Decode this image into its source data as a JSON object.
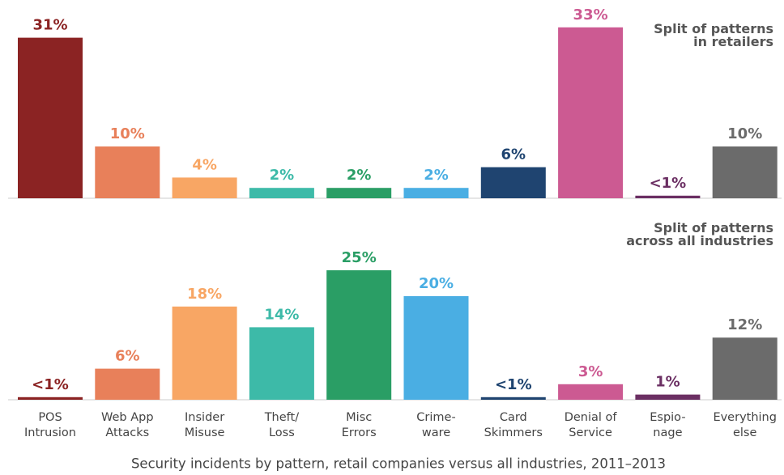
{
  "chart_data": [
    {
      "type": "bar",
      "title": "Split of patterns\nin retailers",
      "values": [
        31,
        10,
        4,
        2,
        2,
        2,
        6,
        33,
        0.5,
        10
      ],
      "value_labels": [
        "31%",
        "10%",
        "4%",
        "2%",
        "2%",
        "2%",
        "6%",
        "33%",
        "<1%",
        "10%"
      ],
      "colors": [
        "#8b2323",
        "#e8805a",
        "#f8a664",
        "#3dbaa8",
        "#2a9e65",
        "#4aaee3",
        "#1f4470",
        "#cc5a92",
        "#6b2f63",
        "#6b6b6b"
      ],
      "ylim": [
        0,
        35
      ]
    },
    {
      "type": "bar",
      "title": "Split of patterns\nacross all industries",
      "categories": [
        "POS\nIntrusion",
        "Web App\nAttacks",
        "Insider\nMisuse",
        "Theft/\nLoss",
        "Misc\nErrors",
        "Crime-\nware",
        "Card\nSkimmers",
        "Denial of\nService",
        "Espio-\nnage",
        "Everything\nelse"
      ],
      "values": [
        0.5,
        6,
        18,
        14,
        25,
        20,
        0.5,
        3,
        1,
        12
      ],
      "value_labels": [
        "<1%",
        "6%",
        "18%",
        "14%",
        "25%",
        "20%",
        "<1%",
        "3%",
        "1%",
        "12%"
      ],
      "colors": [
        "#8b2323",
        "#e8805a",
        "#f8a664",
        "#3dbaa8",
        "#2a9e65",
        "#4aaee3",
        "#1f4470",
        "#cc5a92",
        "#6b2f63",
        "#6b6b6b"
      ],
      "ylim": [
        0,
        35
      ]
    }
  ],
  "caption": "Security incidents by pattern, retail companies versus all industries, 2011–2013"
}
